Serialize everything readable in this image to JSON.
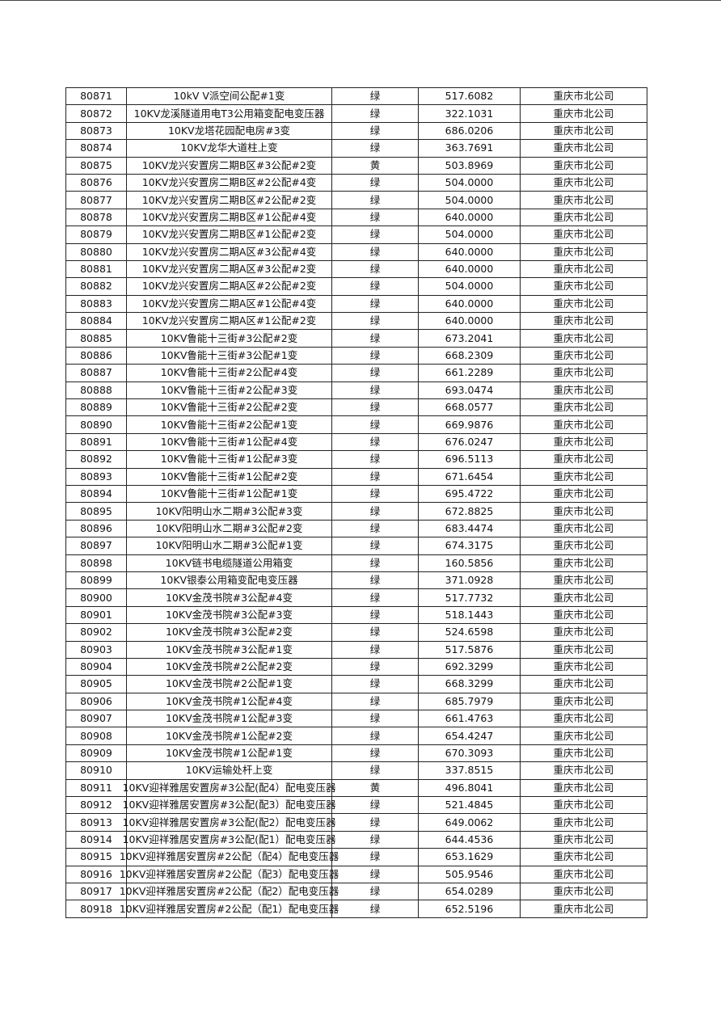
{
  "table": {
    "rows": [
      [
        "80871",
        "10kV V派空间公配#1变",
        "绿",
        "517.6082",
        "重庆市北公司"
      ],
      [
        "80872",
        "10KV龙溪隧道用电T3公用箱变配电变压器",
        "绿",
        "322.1031",
        "重庆市北公司"
      ],
      [
        "80873",
        "10KV龙塔花园配电房#3变",
        "绿",
        "686.0206",
        "重庆市北公司"
      ],
      [
        "80874",
        "10KV龙华大道柱上变",
        "绿",
        "363.7691",
        "重庆市北公司"
      ],
      [
        "80875",
        "10KV龙兴安置房二期B区#3公配#2变",
        "黄",
        "503.8969",
        "重庆市北公司"
      ],
      [
        "80876",
        "10KV龙兴安置房二期B区#2公配#4变",
        "绿",
        "504.0000",
        "重庆市北公司"
      ],
      [
        "80877",
        "10KV龙兴安置房二期B区#2公配#2变",
        "绿",
        "504.0000",
        "重庆市北公司"
      ],
      [
        "80878",
        "10KV龙兴安置房二期B区#1公配#4变",
        "绿",
        "640.0000",
        "重庆市北公司"
      ],
      [
        "80879",
        "10KV龙兴安置房二期B区#1公配#2变",
        "绿",
        "504.0000",
        "重庆市北公司"
      ],
      [
        "80880",
        "10KV龙兴安置房二期A区#3公配#4变",
        "绿",
        "640.0000",
        "重庆市北公司"
      ],
      [
        "80881",
        "10KV龙兴安置房二期A区#3公配#2变",
        "绿",
        "640.0000",
        "重庆市北公司"
      ],
      [
        "80882",
        "10KV龙兴安置房二期A区#2公配#2变",
        "绿",
        "504.0000",
        "重庆市北公司"
      ],
      [
        "80883",
        "10KV龙兴安置房二期A区#1公配#4变",
        "绿",
        "640.0000",
        "重庆市北公司"
      ],
      [
        "80884",
        "10KV龙兴安置房二期A区#1公配#2变",
        "绿",
        "640.0000",
        "重庆市北公司"
      ],
      [
        "80885",
        "10KV鲁能十三街#3公配#2变",
        "绿",
        "673.2041",
        "重庆市北公司"
      ],
      [
        "80886",
        "10KV鲁能十三街#3公配#1变",
        "绿",
        "668.2309",
        "重庆市北公司"
      ],
      [
        "80887",
        "10KV鲁能十三街#2公配#4变",
        "绿",
        "661.2289",
        "重庆市北公司"
      ],
      [
        "80888",
        "10KV鲁能十三街#2公配#3变",
        "绿",
        "693.0474",
        "重庆市北公司"
      ],
      [
        "80889",
        "10KV鲁能十三街#2公配#2变",
        "绿",
        "668.0577",
        "重庆市北公司"
      ],
      [
        "80890",
        "10KV鲁能十三街#2公配#1变",
        "绿",
        "669.9876",
        "重庆市北公司"
      ],
      [
        "80891",
        "10KV鲁能十三街#1公配#4变",
        "绿",
        "676.0247",
        "重庆市北公司"
      ],
      [
        "80892",
        "10KV鲁能十三街#1公配#3变",
        "绿",
        "696.5113",
        "重庆市北公司"
      ],
      [
        "80893",
        "10KV鲁能十三街#1公配#2变",
        "绿",
        "671.6454",
        "重庆市北公司"
      ],
      [
        "80894",
        "10KV鲁能十三街#1公配#1变",
        "绿",
        "695.4722",
        "重庆市北公司"
      ],
      [
        "80895",
        "10KV阳明山水二期#3公配#3变",
        "绿",
        "672.8825",
        "重庆市北公司"
      ],
      [
        "80896",
        "10KV阳明山水二期#3公配#2变",
        "绿",
        "683.4474",
        "重庆市北公司"
      ],
      [
        "80897",
        "10KV阳明山水二期#3公配#1变",
        "绿",
        "674.3175",
        "重庆市北公司"
      ],
      [
        "80898",
        "10KV链书电缆隧道公用箱变",
        "绿",
        "160.5856",
        "重庆市北公司"
      ],
      [
        "80899",
        "10KV银泰公用箱变配电变压器",
        "绿",
        "371.0928",
        "重庆市北公司"
      ],
      [
        "80900",
        "10KV金茂书院#3公配#4变",
        "绿",
        "517.7732",
        "重庆市北公司"
      ],
      [
        "80901",
        "10KV金茂书院#3公配#3变",
        "绿",
        "518.1443",
        "重庆市北公司"
      ],
      [
        "80902",
        "10KV金茂书院#3公配#2变",
        "绿",
        "524.6598",
        "重庆市北公司"
      ],
      [
        "80903",
        "10KV金茂书院#3公配#1变",
        "绿",
        "517.5876",
        "重庆市北公司"
      ],
      [
        "80904",
        "10KV金茂书院#2公配#2变",
        "绿",
        "692.3299",
        "重庆市北公司"
      ],
      [
        "80905",
        "10KV金茂书院#2公配#1变",
        "绿",
        "668.3299",
        "重庆市北公司"
      ],
      [
        "80906",
        "10KV金茂书院#1公配#4变",
        "绿",
        "685.7979",
        "重庆市北公司"
      ],
      [
        "80907",
        "10KV金茂书院#1公配#3变",
        "绿",
        "661.4763",
        "重庆市北公司"
      ],
      [
        "80908",
        "10KV金茂书院#1公配#2变",
        "绿",
        "654.4247",
        "重庆市北公司"
      ],
      [
        "80909",
        "10KV金茂书院#1公配#1变",
        "绿",
        "670.3093",
        "重庆市北公司"
      ],
      [
        "80910",
        "10KV运输处杆上变",
        "绿",
        "337.8515",
        "重庆市北公司"
      ],
      [
        "80911",
        "10KV迎祥雅居安置房#3公配(配4）配电变压器",
        "黄",
        "496.8041",
        "重庆市北公司"
      ],
      [
        "80912",
        "10KV迎祥雅居安置房#3公配(配3）配电变压器",
        "绿",
        "521.4845",
        "重庆市北公司"
      ],
      [
        "80913",
        "10KV迎祥雅居安置房#3公配(配2）配电变压器",
        "绿",
        "649.0062",
        "重庆市北公司"
      ],
      [
        "80914",
        "10KV迎祥雅居安置房#3公配(配1）配电变压器",
        "绿",
        "644.4536",
        "重庆市北公司"
      ],
      [
        "80915",
        "10KV迎祥雅居安置房#2公配（配4）配电变压器",
        "绿",
        "653.1629",
        "重庆市北公司"
      ],
      [
        "80916",
        "10KV迎祥雅居安置房#2公配（配3）配电变压器",
        "绿",
        "505.9546",
        "重庆市北公司"
      ],
      [
        "80917",
        "10KV迎祥雅居安置房#2公配（配2）配电变压器",
        "绿",
        "654.0289",
        "重庆市北公司"
      ],
      [
        "80918",
        "10KV迎祥雅居安置房#2公配（配1）配电变压器",
        "绿",
        "652.5196",
        "重庆市北公司"
      ]
    ]
  }
}
